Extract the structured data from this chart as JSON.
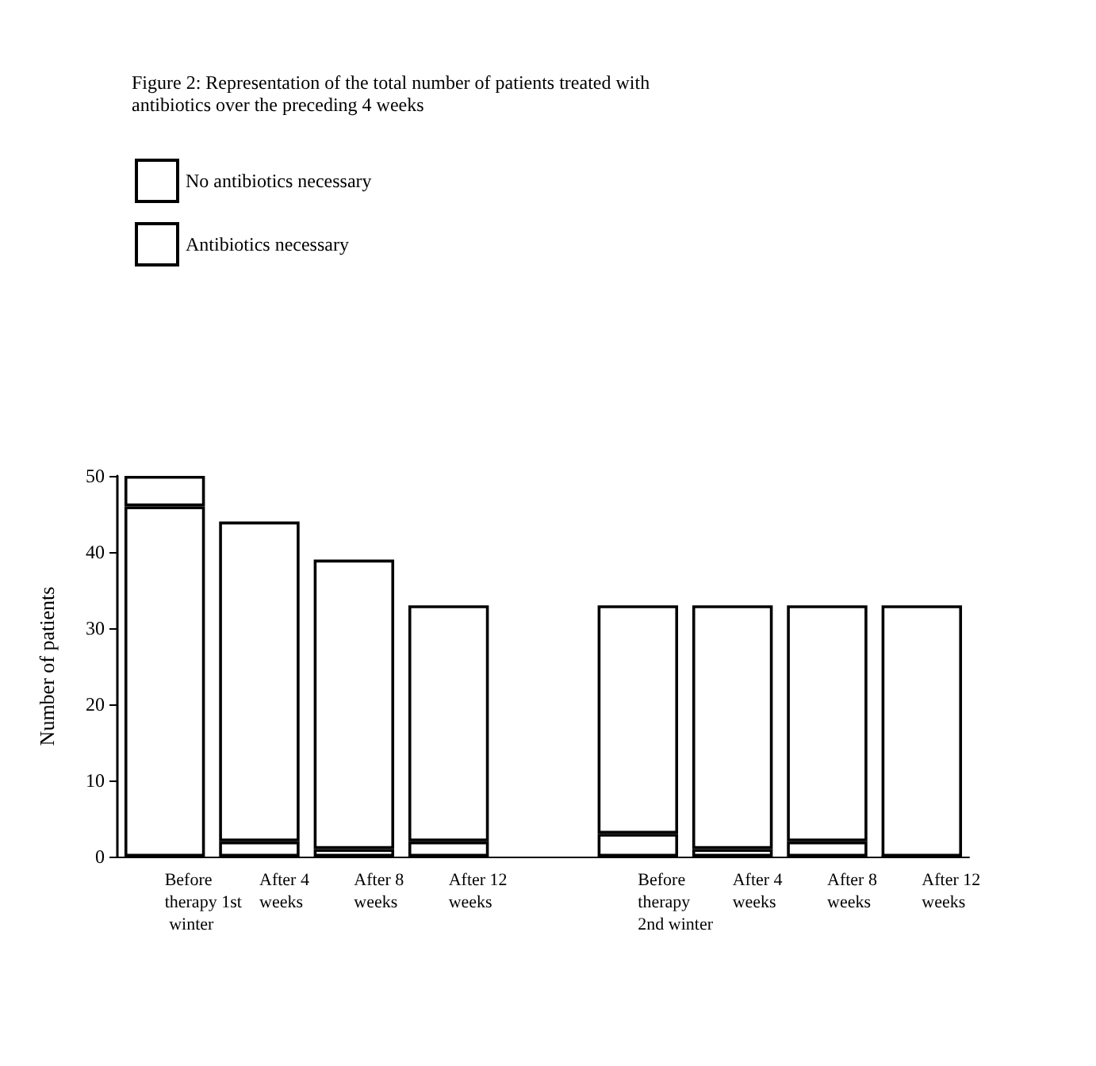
{
  "chart_data": {
    "type": "bar",
    "title": "Figure 2: Representation of the total number of patients treated with antibiotics over the preceding 4 weeks",
    "ylabel": "Number of patients",
    "categories": [
      "Before therapy 1st winter",
      "After 4 weeks",
      "After 8 weeks",
      "After 12 weeks",
      null,
      "Before therapy 2nd winter",
      "After 4 weeks",
      "After 8 weeks",
      "After 12 weeks"
    ],
    "stacked": true,
    "series": [
      {
        "name": "Antibiotics necessary",
        "color": "#ffffff",
        "values": [
          46,
          2,
          1,
          2,
          null,
          3,
          1,
          2,
          0
        ]
      },
      {
        "name": "No antibiotics necessary",
        "color": "#ffffff",
        "values": [
          4,
          42,
          38,
          31,
          null,
          30,
          32,
          31,
          33
        ]
      }
    ],
    "ylim": [
      0,
      50
    ],
    "yticks": [
      0,
      10,
      20,
      30,
      40,
      50
    ],
    "grid": false,
    "legend": "top left"
  }
}
